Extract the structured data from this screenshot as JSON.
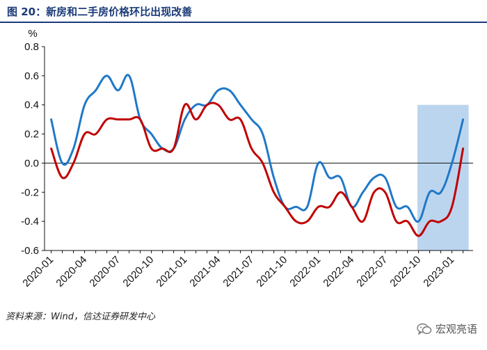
{
  "figure": {
    "title": "图 20：新房和二手房价格环比出现改善",
    "source": "资料来源：Wind，信达证券研发中心",
    "watermark": "宏观亮语",
    "watermark_icon": "wechat-icon"
  },
  "chart_data": {
    "type": "line",
    "unit": "%",
    "ylim": [
      -0.6,
      0.8
    ],
    "yticks": [
      "0.8",
      "0.6",
      "0.4",
      "0.2",
      "0.0",
      "-0.2",
      "-0.4",
      "-0.6"
    ],
    "ytick_values": [
      0.8,
      0.6,
      0.4,
      0.2,
      0.0,
      -0.2,
      -0.4,
      -0.6
    ],
    "xticks": [
      "2020-01",
      "2020-04",
      "2020-07",
      "2020-10",
      "2021-01",
      "2021-04",
      "2021-07",
      "2021-10",
      "2022-01",
      "2022-04",
      "2022-07",
      "2022-10",
      "2023-01"
    ],
    "x": [
      "2020-01",
      "2020-02",
      "2020-03",
      "2020-04",
      "2020-05",
      "2020-06",
      "2020-07",
      "2020-08",
      "2020-09",
      "2020-10",
      "2020-11",
      "2020-12",
      "2021-01",
      "2021-02",
      "2021-03",
      "2021-04",
      "2021-05",
      "2021-06",
      "2021-07",
      "2021-08",
      "2021-09",
      "2021-10",
      "2021-11",
      "2021-12",
      "2022-01",
      "2022-02",
      "2022-03",
      "2022-04",
      "2022-05",
      "2022-06",
      "2022-07",
      "2022-08",
      "2022-09",
      "2022-10",
      "2022-11",
      "2022-12",
      "2023-01",
      "2023-02"
    ],
    "grid": false,
    "highlight": {
      "from": "2022-10",
      "to": "2023-02",
      "color": "#bcd5ee"
    },
    "series": [
      {
        "color": "#1f78c8",
        "values": [
          0.3,
          0.0,
          0.1,
          0.4,
          0.5,
          0.6,
          0.5,
          0.6,
          0.3,
          0.2,
          0.1,
          0.1,
          0.3,
          0.4,
          0.4,
          0.5,
          0.5,
          0.4,
          0.3,
          0.2,
          -0.1,
          -0.3,
          -0.3,
          -0.3,
          0.0,
          -0.1,
          -0.1,
          -0.3,
          -0.2,
          -0.1,
          -0.1,
          -0.3,
          -0.3,
          -0.4,
          -0.2,
          -0.2,
          0.0,
          0.3
        ]
      },
      {
        "color": "#c00000",
        "values": [
          0.1,
          -0.1,
          0.0,
          0.2,
          0.2,
          0.3,
          0.3,
          0.3,
          0.3,
          0.1,
          0.1,
          0.1,
          0.4,
          0.3,
          0.4,
          0.4,
          0.3,
          0.3,
          0.1,
          0.0,
          -0.2,
          -0.3,
          -0.4,
          -0.4,
          -0.3,
          -0.3,
          -0.2,
          -0.3,
          -0.4,
          -0.2,
          -0.2,
          -0.4,
          -0.4,
          -0.5,
          -0.4,
          -0.4,
          -0.3,
          0.1
        ]
      }
    ]
  }
}
